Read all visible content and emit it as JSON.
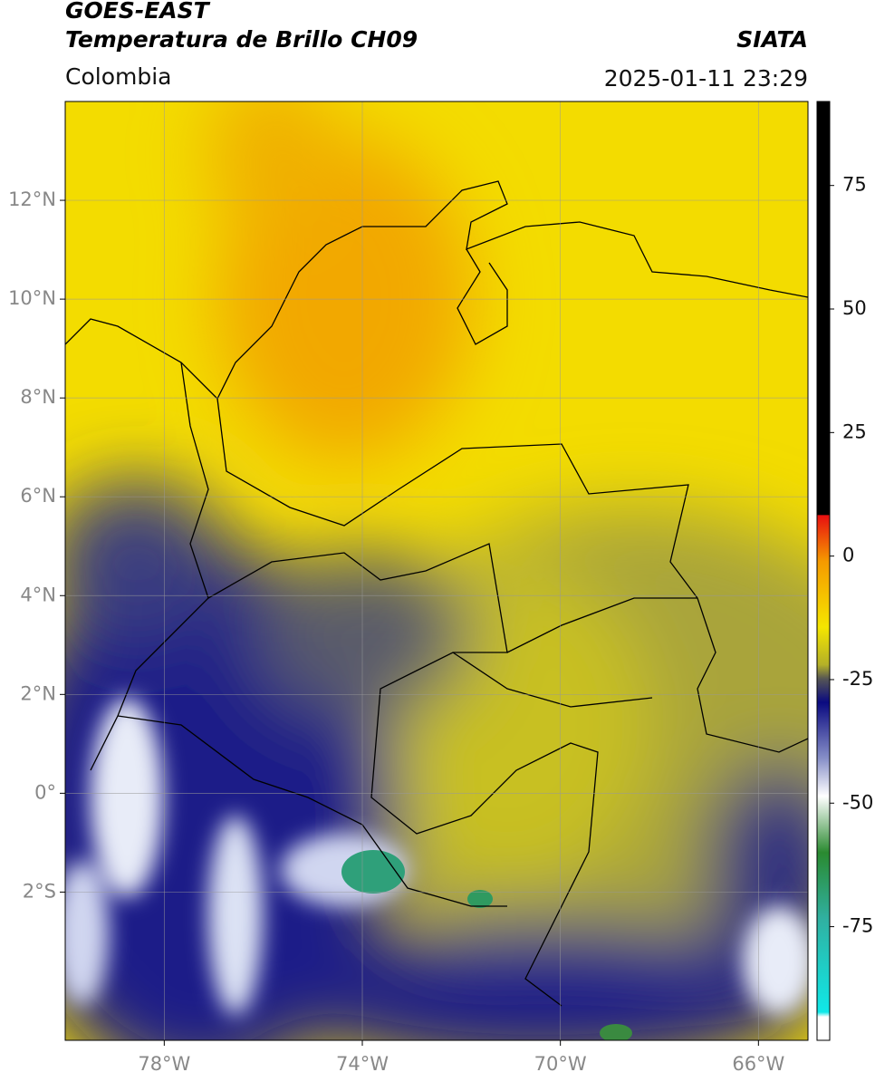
{
  "header": {
    "title_line1": "GOES-EAST",
    "title_line2": "Temperatura de Brillo CH09",
    "source": "SIATA",
    "region": "Colombia",
    "timestamp": "2025-01-11 23:29"
  },
  "map": {
    "lon_range": [
      -80,
      -65
    ],
    "lat_range": [
      -5,
      14
    ],
    "lon_ticks": [
      {
        "value": -78,
        "label": "78°W"
      },
      {
        "value": -74,
        "label": "74°W"
      },
      {
        "value": -70,
        "label": "70°W"
      },
      {
        "value": -66,
        "label": "66°W"
      }
    ],
    "lat_ticks": [
      {
        "value": 12,
        "label": "12°N"
      },
      {
        "value": 10,
        "label": "10°N"
      },
      {
        "value": 8,
        "label": "8°N"
      },
      {
        "value": 6,
        "label": "6°N"
      },
      {
        "value": 4,
        "label": "4°N"
      },
      {
        "value": 2,
        "label": "2°N"
      },
      {
        "value": 0,
        "label": "0°"
      },
      {
        "value": -2,
        "label": "2°S"
      }
    ]
  },
  "colorbar": {
    "range": [
      -98,
      92
    ],
    "ticks": [
      75,
      50,
      25,
      0,
      -25,
      -50,
      -75
    ]
  }
}
